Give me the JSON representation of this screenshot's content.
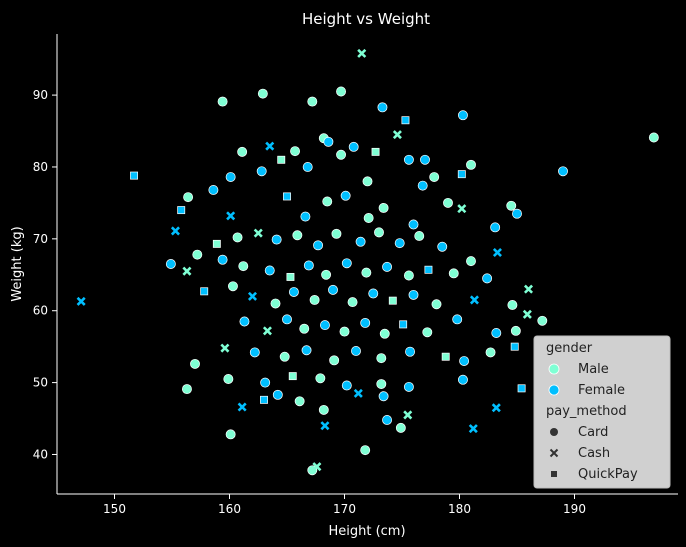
{
  "chart_data": {
    "type": "scatter",
    "title": "Height vs Weight",
    "xlabel": "Height (cm)",
    "ylabel": "Weight (kg)",
    "xlim": [
      145,
      199
    ],
    "ylim": [
      34.5,
      98.5
    ],
    "xticks": [
      150,
      160,
      170,
      180,
      190
    ],
    "yticks": [
      40,
      50,
      60,
      70,
      80,
      90
    ],
    "grid": false,
    "legend": {
      "placement": "bottom-right",
      "hue_title": "gender",
      "hue_entries": [
        {
          "label": "Male",
          "color": "#7FFFD4"
        },
        {
          "label": "Female",
          "color": "#00BFFF"
        }
      ],
      "style_title": "pay_method",
      "style_entries": [
        {
          "label": "Card",
          "marker": "circle"
        },
        {
          "label": "Cash",
          "marker": "x"
        },
        {
          "label": "QuickPay",
          "marker": "square"
        }
      ]
    },
    "colors": {
      "Male": "#7FFFD4",
      "Female": "#00BFFF",
      "background": "#000000",
      "legend_bg": "#D0D0D0"
    },
    "points": [
      {
        "x": 196.9,
        "y": 84.1,
        "gender": "Male",
        "pay_method": "Card"
      },
      {
        "x": 189.0,
        "y": 79.4,
        "gender": "Female",
        "pay_method": "Card"
      },
      {
        "x": 147.1,
        "y": 61.3,
        "gender": "Female",
        "pay_method": "Cash"
      },
      {
        "x": 151.7,
        "y": 78.8,
        "gender": "Female",
        "pay_method": "QuickPay"
      },
      {
        "x": 171.5,
        "y": 95.8,
        "gender": "Male",
        "pay_method": "Cash"
      },
      {
        "x": 169.7,
        "y": 90.5,
        "gender": "Male",
        "pay_method": "Card"
      },
      {
        "x": 162.9,
        "y": 90.2,
        "gender": "Male",
        "pay_method": "Card"
      },
      {
        "x": 159.4,
        "y": 89.1,
        "gender": "Male",
        "pay_method": "Card"
      },
      {
        "x": 167.2,
        "y": 89.1,
        "gender": "Male",
        "pay_method": "Card"
      },
      {
        "x": 173.3,
        "y": 88.3,
        "gender": "Female",
        "pay_method": "Card"
      },
      {
        "x": 180.3,
        "y": 87.2,
        "gender": "Female",
        "pay_method": "Card"
      },
      {
        "x": 175.3,
        "y": 86.5,
        "gender": "Female",
        "pay_method": "QuickPay"
      },
      {
        "x": 174.6,
        "y": 84.5,
        "gender": "Male",
        "pay_method": "Cash"
      },
      {
        "x": 168.2,
        "y": 84.0,
        "gender": "Male",
        "pay_method": "Card"
      },
      {
        "x": 168.6,
        "y": 83.5,
        "gender": "Female",
        "pay_method": "Card"
      },
      {
        "x": 163.5,
        "y": 82.9,
        "gender": "Female",
        "pay_method": "Cash"
      },
      {
        "x": 165.7,
        "y": 82.2,
        "gender": "Male",
        "pay_method": "Card"
      },
      {
        "x": 170.8,
        "y": 82.8,
        "gender": "Female",
        "pay_method": "Card"
      },
      {
        "x": 161.1,
        "y": 82.1,
        "gender": "Male",
        "pay_method": "Card"
      },
      {
        "x": 172.7,
        "y": 82.1,
        "gender": "Male",
        "pay_method": "QuickPay"
      },
      {
        "x": 169.7,
        "y": 81.7,
        "gender": "Male",
        "pay_method": "Card"
      },
      {
        "x": 164.5,
        "y": 81.0,
        "gender": "Male",
        "pay_method": "QuickPay"
      },
      {
        "x": 175.6,
        "y": 81.0,
        "gender": "Female",
        "pay_method": "Card"
      },
      {
        "x": 177.0,
        "y": 81.0,
        "gender": "Female",
        "pay_method": "Card"
      },
      {
        "x": 181.0,
        "y": 80.3,
        "gender": "Male",
        "pay_method": "Card"
      },
      {
        "x": 166.8,
        "y": 80.0,
        "gender": "Female",
        "pay_method": "Card"
      },
      {
        "x": 162.8,
        "y": 79.4,
        "gender": "Female",
        "pay_method": "Card"
      },
      {
        "x": 180.2,
        "y": 79.0,
        "gender": "Female",
        "pay_method": "QuickPay"
      },
      {
        "x": 160.1,
        "y": 78.6,
        "gender": "Female",
        "pay_method": "Card"
      },
      {
        "x": 177.8,
        "y": 78.6,
        "gender": "Male",
        "pay_method": "Card"
      },
      {
        "x": 172.0,
        "y": 78.0,
        "gender": "Male",
        "pay_method": "Card"
      },
      {
        "x": 176.8,
        "y": 77.4,
        "gender": "Female",
        "pay_method": "Card"
      },
      {
        "x": 158.6,
        "y": 76.8,
        "gender": "Female",
        "pay_method": "Card"
      },
      {
        "x": 156.4,
        "y": 75.8,
        "gender": "Male",
        "pay_method": "Card"
      },
      {
        "x": 165.0,
        "y": 75.9,
        "gender": "Female",
        "pay_method": "QuickPay"
      },
      {
        "x": 170.1,
        "y": 76.0,
        "gender": "Female",
        "pay_method": "Card"
      },
      {
        "x": 168.5,
        "y": 75.2,
        "gender": "Male",
        "pay_method": "Card"
      },
      {
        "x": 173.4,
        "y": 74.3,
        "gender": "Male",
        "pay_method": "Card"
      },
      {
        "x": 179.0,
        "y": 75.0,
        "gender": "Male",
        "pay_method": "Card"
      },
      {
        "x": 184.5,
        "y": 74.6,
        "gender": "Male",
        "pay_method": "Card"
      },
      {
        "x": 185.0,
        "y": 73.5,
        "gender": "Female",
        "pay_method": "Card"
      },
      {
        "x": 180.2,
        "y": 74.2,
        "gender": "Male",
        "pay_method": "Cash"
      },
      {
        "x": 155.8,
        "y": 74.0,
        "gender": "Female",
        "pay_method": "QuickPay"
      },
      {
        "x": 160.1,
        "y": 73.2,
        "gender": "Female",
        "pay_method": "Cash"
      },
      {
        "x": 166.6,
        "y": 73.1,
        "gender": "Female",
        "pay_method": "Card"
      },
      {
        "x": 172.1,
        "y": 72.9,
        "gender": "Male",
        "pay_method": "Card"
      },
      {
        "x": 176.0,
        "y": 72.0,
        "gender": "Female",
        "pay_method": "Card"
      },
      {
        "x": 183.1,
        "y": 71.6,
        "gender": "Female",
        "pay_method": "Card"
      },
      {
        "x": 155.3,
        "y": 71.1,
        "gender": "Female",
        "pay_method": "Cash"
      },
      {
        "x": 157.2,
        "y": 67.8,
        "gender": "Male",
        "pay_method": "Card"
      },
      {
        "x": 158.9,
        "y": 69.3,
        "gender": "Male",
        "pay_method": "QuickPay"
      },
      {
        "x": 160.7,
        "y": 70.2,
        "gender": "Male",
        "pay_method": "Card"
      },
      {
        "x": 162.5,
        "y": 70.8,
        "gender": "Male",
        "pay_method": "Cash"
      },
      {
        "x": 164.1,
        "y": 69.9,
        "gender": "Female",
        "pay_method": "Card"
      },
      {
        "x": 165.9,
        "y": 70.5,
        "gender": "Male",
        "pay_method": "Card"
      },
      {
        "x": 167.7,
        "y": 69.1,
        "gender": "Female",
        "pay_method": "Card"
      },
      {
        "x": 169.3,
        "y": 70.7,
        "gender": "Male",
        "pay_method": "Card"
      },
      {
        "x": 171.4,
        "y": 69.6,
        "gender": "Female",
        "pay_method": "Card"
      },
      {
        "x": 173.0,
        "y": 70.9,
        "gender": "Male",
        "pay_method": "Card"
      },
      {
        "x": 174.8,
        "y": 69.4,
        "gender": "Female",
        "pay_method": "Card"
      },
      {
        "x": 176.5,
        "y": 70.4,
        "gender": "Male",
        "pay_method": "Card"
      },
      {
        "x": 178.5,
        "y": 68.9,
        "gender": "Female",
        "pay_method": "Card"
      },
      {
        "x": 181.0,
        "y": 66.9,
        "gender": "Male",
        "pay_method": "Card"
      },
      {
        "x": 183.3,
        "y": 68.1,
        "gender": "Female",
        "pay_method": "Cash"
      },
      {
        "x": 154.9,
        "y": 66.5,
        "gender": "Female",
        "pay_method": "Card"
      },
      {
        "x": 156.3,
        "y": 65.5,
        "gender": "Male",
        "pay_method": "Cash"
      },
      {
        "x": 159.4,
        "y": 67.1,
        "gender": "Female",
        "pay_method": "Card"
      },
      {
        "x": 161.2,
        "y": 66.2,
        "gender": "Male",
        "pay_method": "Card"
      },
      {
        "x": 163.5,
        "y": 65.6,
        "gender": "Female",
        "pay_method": "Card"
      },
      {
        "x": 165.3,
        "y": 64.7,
        "gender": "Male",
        "pay_method": "QuickPay"
      },
      {
        "x": 166.9,
        "y": 66.3,
        "gender": "Female",
        "pay_method": "Card"
      },
      {
        "x": 168.4,
        "y": 65.0,
        "gender": "Male",
        "pay_method": "Card"
      },
      {
        "x": 170.2,
        "y": 66.6,
        "gender": "Female",
        "pay_method": "Card"
      },
      {
        "x": 171.9,
        "y": 65.3,
        "gender": "Male",
        "pay_method": "Card"
      },
      {
        "x": 173.7,
        "y": 66.1,
        "gender": "Female",
        "pay_method": "Card"
      },
      {
        "x": 175.6,
        "y": 64.9,
        "gender": "Male",
        "pay_method": "Card"
      },
      {
        "x": 177.3,
        "y": 65.7,
        "gender": "Female",
        "pay_method": "QuickPay"
      },
      {
        "x": 179.5,
        "y": 65.2,
        "gender": "Male",
        "pay_method": "Card"
      },
      {
        "x": 182.4,
        "y": 64.5,
        "gender": "Female",
        "pay_method": "Card"
      },
      {
        "x": 186.0,
        "y": 63.0,
        "gender": "Male",
        "pay_method": "Cash"
      },
      {
        "x": 157.8,
        "y": 62.7,
        "gender": "Female",
        "pay_method": "QuickPay"
      },
      {
        "x": 160.3,
        "y": 63.4,
        "gender": "Male",
        "pay_method": "Card"
      },
      {
        "x": 162.0,
        "y": 62.0,
        "gender": "Female",
        "pay_method": "Cash"
      },
      {
        "x": 164.0,
        "y": 61.0,
        "gender": "Male",
        "pay_method": "Card"
      },
      {
        "x": 165.6,
        "y": 62.6,
        "gender": "Female",
        "pay_method": "Card"
      },
      {
        "x": 167.4,
        "y": 61.5,
        "gender": "Male",
        "pay_method": "Card"
      },
      {
        "x": 169.0,
        "y": 62.9,
        "gender": "Female",
        "pay_method": "Card"
      },
      {
        "x": 170.7,
        "y": 61.2,
        "gender": "Male",
        "pay_method": "Card"
      },
      {
        "x": 172.5,
        "y": 62.4,
        "gender": "Female",
        "pay_method": "Card"
      },
      {
        "x": 174.2,
        "y": 61.4,
        "gender": "Male",
        "pay_method": "QuickPay"
      },
      {
        "x": 176.0,
        "y": 62.2,
        "gender": "Female",
        "pay_method": "Card"
      },
      {
        "x": 178.0,
        "y": 60.9,
        "gender": "Male",
        "pay_method": "Card"
      },
      {
        "x": 181.3,
        "y": 61.5,
        "gender": "Female",
        "pay_method": "Cash"
      },
      {
        "x": 184.6,
        "y": 60.8,
        "gender": "Male",
        "pay_method": "Card"
      },
      {
        "x": 187.2,
        "y": 58.6,
        "gender": "Male",
        "pay_method": "Card"
      },
      {
        "x": 185.9,
        "y": 59.5,
        "gender": "Male",
        "pay_method": "Cash"
      },
      {
        "x": 161.3,
        "y": 58.5,
        "gender": "Female",
        "pay_method": "Card"
      },
      {
        "x": 163.3,
        "y": 57.2,
        "gender": "Male",
        "pay_method": "Cash"
      },
      {
        "x": 165.0,
        "y": 58.8,
        "gender": "Female",
        "pay_method": "Card"
      },
      {
        "x": 166.5,
        "y": 57.5,
        "gender": "Male",
        "pay_method": "Card"
      },
      {
        "x": 168.3,
        "y": 58.0,
        "gender": "Female",
        "pay_method": "Card"
      },
      {
        "x": 170.0,
        "y": 57.1,
        "gender": "Male",
        "pay_method": "Card"
      },
      {
        "x": 171.8,
        "y": 58.3,
        "gender": "Female",
        "pay_method": "Card"
      },
      {
        "x": 173.5,
        "y": 56.8,
        "gender": "Male",
        "pay_method": "Card"
      },
      {
        "x": 175.1,
        "y": 58.1,
        "gender": "Female",
        "pay_method": "QuickPay"
      },
      {
        "x": 177.2,
        "y": 57.0,
        "gender": "Male",
        "pay_method": "Card"
      },
      {
        "x": 179.8,
        "y": 58.8,
        "gender": "Female",
        "pay_method": "Card"
      },
      {
        "x": 183.2,
        "y": 56.9,
        "gender": "Female",
        "pay_method": "Card"
      },
      {
        "x": 184.9,
        "y": 57.2,
        "gender": "Male",
        "pay_method": "Card"
      },
      {
        "x": 159.6,
        "y": 54.8,
        "gender": "Male",
        "pay_method": "Cash"
      },
      {
        "x": 162.2,
        "y": 54.2,
        "gender": "Female",
        "pay_method": "Card"
      },
      {
        "x": 164.8,
        "y": 53.6,
        "gender": "Male",
        "pay_method": "Card"
      },
      {
        "x": 166.7,
        "y": 54.5,
        "gender": "Female",
        "pay_method": "Card"
      },
      {
        "x": 169.1,
        "y": 53.1,
        "gender": "Male",
        "pay_method": "Card"
      },
      {
        "x": 171.0,
        "y": 54.4,
        "gender": "Female",
        "pay_method": "Card"
      },
      {
        "x": 173.2,
        "y": 53.4,
        "gender": "Male",
        "pay_method": "Card"
      },
      {
        "x": 175.7,
        "y": 54.3,
        "gender": "Female",
        "pay_method": "Card"
      },
      {
        "x": 178.8,
        "y": 53.6,
        "gender": "Male",
        "pay_method": "QuickPay"
      },
      {
        "x": 180.4,
        "y": 53.0,
        "gender": "Female",
        "pay_method": "Card"
      },
      {
        "x": 182.7,
        "y": 54.2,
        "gender": "Male",
        "pay_method": "Card"
      },
      {
        "x": 184.8,
        "y": 55.0,
        "gender": "Female",
        "pay_method": "QuickPay"
      },
      {
        "x": 157.0,
        "y": 52.6,
        "gender": "Male",
        "pay_method": "Card"
      },
      {
        "x": 159.9,
        "y": 50.5,
        "gender": "Male",
        "pay_method": "Card"
      },
      {
        "x": 163.1,
        "y": 50.0,
        "gender": "Female",
        "pay_method": "Card"
      },
      {
        "x": 165.5,
        "y": 50.9,
        "gender": "Male",
        "pay_method": "QuickPay"
      },
      {
        "x": 167.9,
        "y": 50.6,
        "gender": "Male",
        "pay_method": "Card"
      },
      {
        "x": 170.2,
        "y": 49.6,
        "gender": "Female",
        "pay_method": "Card"
      },
      {
        "x": 173.2,
        "y": 49.8,
        "gender": "Male",
        "pay_method": "Card"
      },
      {
        "x": 175.6,
        "y": 49.4,
        "gender": "Female",
        "pay_method": "Card"
      },
      {
        "x": 180.3,
        "y": 50.4,
        "gender": "Female",
        "pay_method": "Card"
      },
      {
        "x": 185.4,
        "y": 49.2,
        "gender": "Female",
        "pay_method": "QuickPay"
      },
      {
        "x": 156.3,
        "y": 49.1,
        "gender": "Male",
        "pay_method": "Card"
      },
      {
        "x": 164.2,
        "y": 48.3,
        "gender": "Female",
        "pay_method": "Card"
      },
      {
        "x": 166.1,
        "y": 47.4,
        "gender": "Male",
        "pay_method": "Card"
      },
      {
        "x": 168.2,
        "y": 46.2,
        "gender": "Male",
        "pay_method": "Card"
      },
      {
        "x": 171.2,
        "y": 48.5,
        "gender": "Female",
        "pay_method": "Cash"
      },
      {
        "x": 173.4,
        "y": 48.1,
        "gender": "Female",
        "pay_method": "Card"
      },
      {
        "x": 161.1,
        "y": 46.6,
        "gender": "Female",
        "pay_method": "Cash"
      },
      {
        "x": 163.0,
        "y": 47.6,
        "gender": "Female",
        "pay_method": "QuickPay"
      },
      {
        "x": 168.3,
        "y": 44.0,
        "gender": "Female",
        "pay_method": "Cash"
      },
      {
        "x": 175.5,
        "y": 45.5,
        "gender": "Male",
        "pay_method": "Cash"
      },
      {
        "x": 174.9,
        "y": 43.7,
        "gender": "Male",
        "pay_method": "Card"
      },
      {
        "x": 183.2,
        "y": 46.5,
        "gender": "Female",
        "pay_method": "Cash"
      },
      {
        "x": 181.2,
        "y": 43.6,
        "gender": "Female",
        "pay_method": "Cash"
      },
      {
        "x": 173.7,
        "y": 44.8,
        "gender": "Female",
        "pay_method": "Card"
      },
      {
        "x": 160.1,
        "y": 42.8,
        "gender": "Male",
        "pay_method": "Card"
      },
      {
        "x": 171.8,
        "y": 40.6,
        "gender": "Male",
        "pay_method": "Card"
      },
      {
        "x": 167.2,
        "y": 37.8,
        "gender": "Male",
        "pay_method": "Card"
      },
      {
        "x": 167.6,
        "y": 38.3,
        "gender": "Male",
        "pay_method": "Cash"
      }
    ]
  }
}
